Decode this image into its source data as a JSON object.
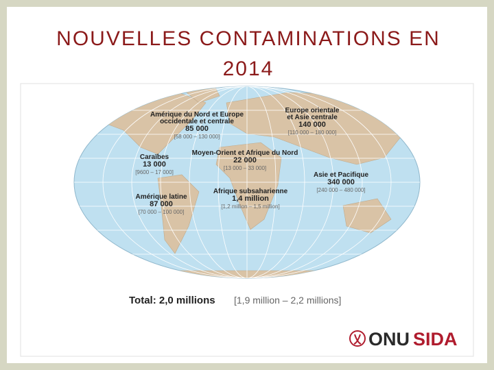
{
  "title": [
    "NOUVELLES CONTAMINATIONS EN",
    "2014"
  ],
  "regions": [
    {
      "name": [
        "Amérique du Nord et Europe",
        "occidentale et centrale"
      ],
      "value": "85 000",
      "range": "[58 000 – 130 000]"
    },
    {
      "name": [
        "Europe orientale",
        "et Asie centrale"
      ],
      "value": "140 000",
      "range": "[110 000 – 180 000]"
    },
    {
      "name": [
        "Moyen-Orient et Afrique du Nord"
      ],
      "value": "22 000",
      "range": "[13 000 – 33 000]"
    },
    {
      "name": [
        "Caraïbes"
      ],
      "value": "13 000",
      "range": "[9600 – 17 000]"
    },
    {
      "name": [
        "Asie et Pacifique"
      ],
      "value": "340 000",
      "range": "[240 000 – 480 000]"
    },
    {
      "name": [
        "Amérique latine"
      ],
      "value": "87 000",
      "range": "[70 000 – 100 000]"
    },
    {
      "name": [
        "Afrique subsaharienne"
      ],
      "value": "1,4 million",
      "range": "[1,2 million – 1,5 million]"
    }
  ],
  "total": {
    "label": "Total: 2,0 millions",
    "range": "[1,9 million – 2,2 millions]"
  },
  "logo": {
    "part1": "ONU",
    "part2": "SIDA"
  }
}
